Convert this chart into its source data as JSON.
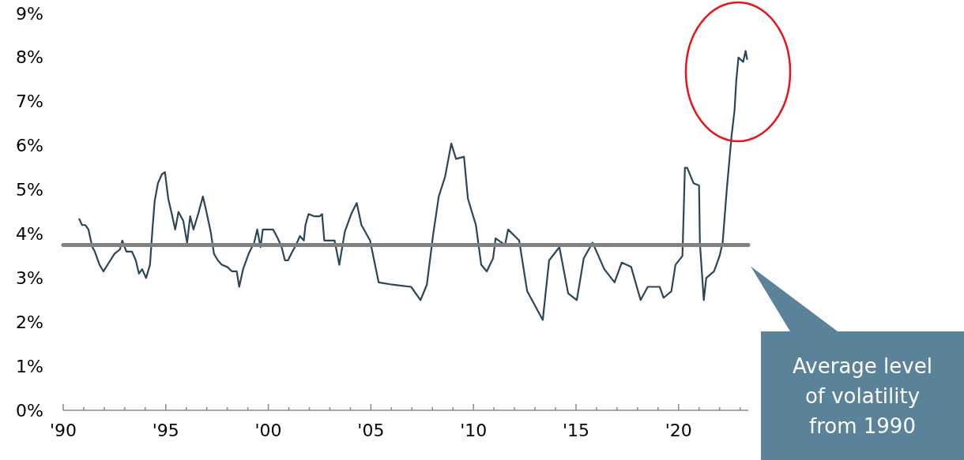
{
  "chart_data": {
    "type": "line",
    "xlim": [
      1990,
      2023.4
    ],
    "xticks": [
      {
        "value": 1990,
        "label": "'90"
      },
      {
        "value": 1991,
        "label": null
      },
      {
        "value": 1992,
        "label": null
      },
      {
        "value": 1993,
        "label": null
      },
      {
        "value": 1994,
        "label": null
      },
      {
        "value": 1995,
        "label": "'95"
      },
      {
        "value": 1996,
        "label": null
      },
      {
        "value": 1997,
        "label": null
      },
      {
        "value": 1998,
        "label": null
      },
      {
        "value": 1999,
        "label": null
      },
      {
        "value": 2000,
        "label": "'00"
      },
      {
        "value": 2001,
        "label": null
      },
      {
        "value": 2002,
        "label": null
      },
      {
        "value": 2003,
        "label": null
      },
      {
        "value": 2004,
        "label": null
      },
      {
        "value": 2005,
        "label": "'05"
      },
      {
        "value": 2006,
        "label": null
      },
      {
        "value": 2007,
        "label": null
      },
      {
        "value": 2008,
        "label": null
      },
      {
        "value": 2009,
        "label": null
      },
      {
        "value": 2010,
        "label": "'10"
      },
      {
        "value": 2011,
        "label": null
      },
      {
        "value": 2012,
        "label": null
      },
      {
        "value": 2013,
        "label": null
      },
      {
        "value": 2014,
        "label": null
      },
      {
        "value": 2015,
        "label": "'15"
      },
      {
        "value": 2016,
        "label": null
      },
      {
        "value": 2017,
        "label": null
      },
      {
        "value": 2018,
        "label": null
      },
      {
        "value": 2019,
        "label": null
      },
      {
        "value": 2020,
        "label": "'20"
      },
      {
        "value": 2021,
        "label": null
      },
      {
        "value": 2022,
        "label": null
      },
      {
        "value": 2023,
        "label": null
      }
    ],
    "ylim": [
      0,
      9
    ],
    "yticks": [
      {
        "value": 0,
        "label": "0%"
      },
      {
        "value": 1,
        "label": "1%"
      },
      {
        "value": 2,
        "label": "2%"
      },
      {
        "value": 3,
        "label": "3%"
      },
      {
        "value": 4,
        "label": "4%"
      },
      {
        "value": 5,
        "label": "5%"
      },
      {
        "value": 6,
        "label": "6%"
      },
      {
        "value": 7,
        "label": "7%"
      },
      {
        "value": 8,
        "label": "8%"
      },
      {
        "value": 9,
        "label": "9%"
      }
    ],
    "grid": false,
    "marker": "none",
    "line_style": "solid",
    "series": [
      {
        "color": "#2b4656",
        "x": [
          1990.77,
          1990.92,
          1991.08,
          1991.23,
          1991.42,
          1991.54,
          1991.77,
          1991.96,
          1992.23,
          1992.5,
          1992.77,
          1992.88,
          1993.08,
          1993.35,
          1993.54,
          1993.69,
          1993.85,
          1994.04,
          1994.23,
          1994.35,
          1994.46,
          1994.62,
          1994.81,
          1994.96,
          1995.12,
          1995.27,
          1995.46,
          1995.62,
          1995.85,
          1996.04,
          1996.19,
          1996.35,
          1996.58,
          1996.81,
          1996.96,
          1997.19,
          1997.35,
          1997.54,
          1997.73,
          1998,
          1998.23,
          1998.46,
          1998.58,
          1998.77,
          1999.04,
          1999.31,
          1999.46,
          1999.62,
          1999.73,
          2000,
          2000.23,
          2000.46,
          2000.65,
          2000.81,
          2000.96,
          2001.12,
          2001.35,
          2001.54,
          2001.73,
          2001.81,
          2001.96,
          2002.23,
          2002.5,
          2002.62,
          2002.73,
          2003,
          2003.23,
          2003.46,
          2003.73,
          2004.04,
          2004.31,
          2004.54,
          2004.96,
          2005.38,
          2006.04,
          2006.96,
          2007.42,
          2007.73,
          2008.04,
          2008.31,
          2008.62,
          2008.92,
          2009.15,
          2009.54,
          2009.73,
          2010.12,
          2010.38,
          2010.65,
          2010.96,
          2011.08,
          2011.54,
          2011.69,
          2012.23,
          2012.62,
          2013.38,
          2013.69,
          2014.19,
          2014.62,
          2015.04,
          2015.38,
          2015.81,
          2016.38,
          2016.88,
          2017.23,
          2017.69,
          2018.15,
          2018.5,
          2019.08,
          2019.27,
          2019.65,
          2019.85,
          2020.19,
          2020.31,
          2020.42,
          2020.73,
          2021,
          2021.04,
          2021.23,
          2021.35,
          2021.73,
          2022,
          2022.15,
          2022.35,
          2022.58,
          2022.73,
          2022.81,
          2022.92,
          2023.15,
          2023.27,
          2023.35
        ],
        "values": [
          4.35,
          4.2,
          4.2,
          4.1,
          3.7,
          3.6,
          3.3,
          3.15,
          3.35,
          3.55,
          3.65,
          3.85,
          3.6,
          3.6,
          3.4,
          3.1,
          3.2,
          3.0,
          3.3,
          4.1,
          4.75,
          5.15,
          5.35,
          5.4,
          4.8,
          4.5,
          4.1,
          4.5,
          4.3,
          3.8,
          4.4,
          4.1,
          4.45,
          4.85,
          4.55,
          4.05,
          3.55,
          3.4,
          3.3,
          3.25,
          3.15,
          3.15,
          2.8,
          3.2,
          3.55,
          3.8,
          4.1,
          3.7,
          4.1,
          4.1,
          4.1,
          3.9,
          3.7,
          3.4,
          3.4,
          3.55,
          3.75,
          3.95,
          3.85,
          4.2,
          4.45,
          4.4,
          4.4,
          4.45,
          3.85,
          3.85,
          3.85,
          3.3,
          4.05,
          4.45,
          4.7,
          4.2,
          3.85,
          2.9,
          2.85,
          2.8,
          2.5,
          2.85,
          4.0,
          4.85,
          5.3,
          6.05,
          5.7,
          5.75,
          4.8,
          4.2,
          3.3,
          3.15,
          3.45,
          3.9,
          3.75,
          4.1,
          3.85,
          2.7,
          2.05,
          3.4,
          3.7,
          2.65,
          2.5,
          3.45,
          3.8,
          3.2,
          2.9,
          3.35,
          3.25,
          2.5,
          2.8,
          2.8,
          2.55,
          2.7,
          3.3,
          3.5,
          5.5,
          5.5,
          5.15,
          5.1,
          3.8,
          2.5,
          3.0,
          3.15,
          3.5,
          3.8,
          5.0,
          6.2,
          6.8,
          7.45,
          8.0,
          7.9,
          8.15,
          7.95
        ]
      }
    ],
    "ref_lines": [
      {
        "axis": "y",
        "value": 3.75,
        "color": "#808080"
      }
    ],
    "annotations": [
      "Average level of volatility from 1990"
    ]
  }
}
